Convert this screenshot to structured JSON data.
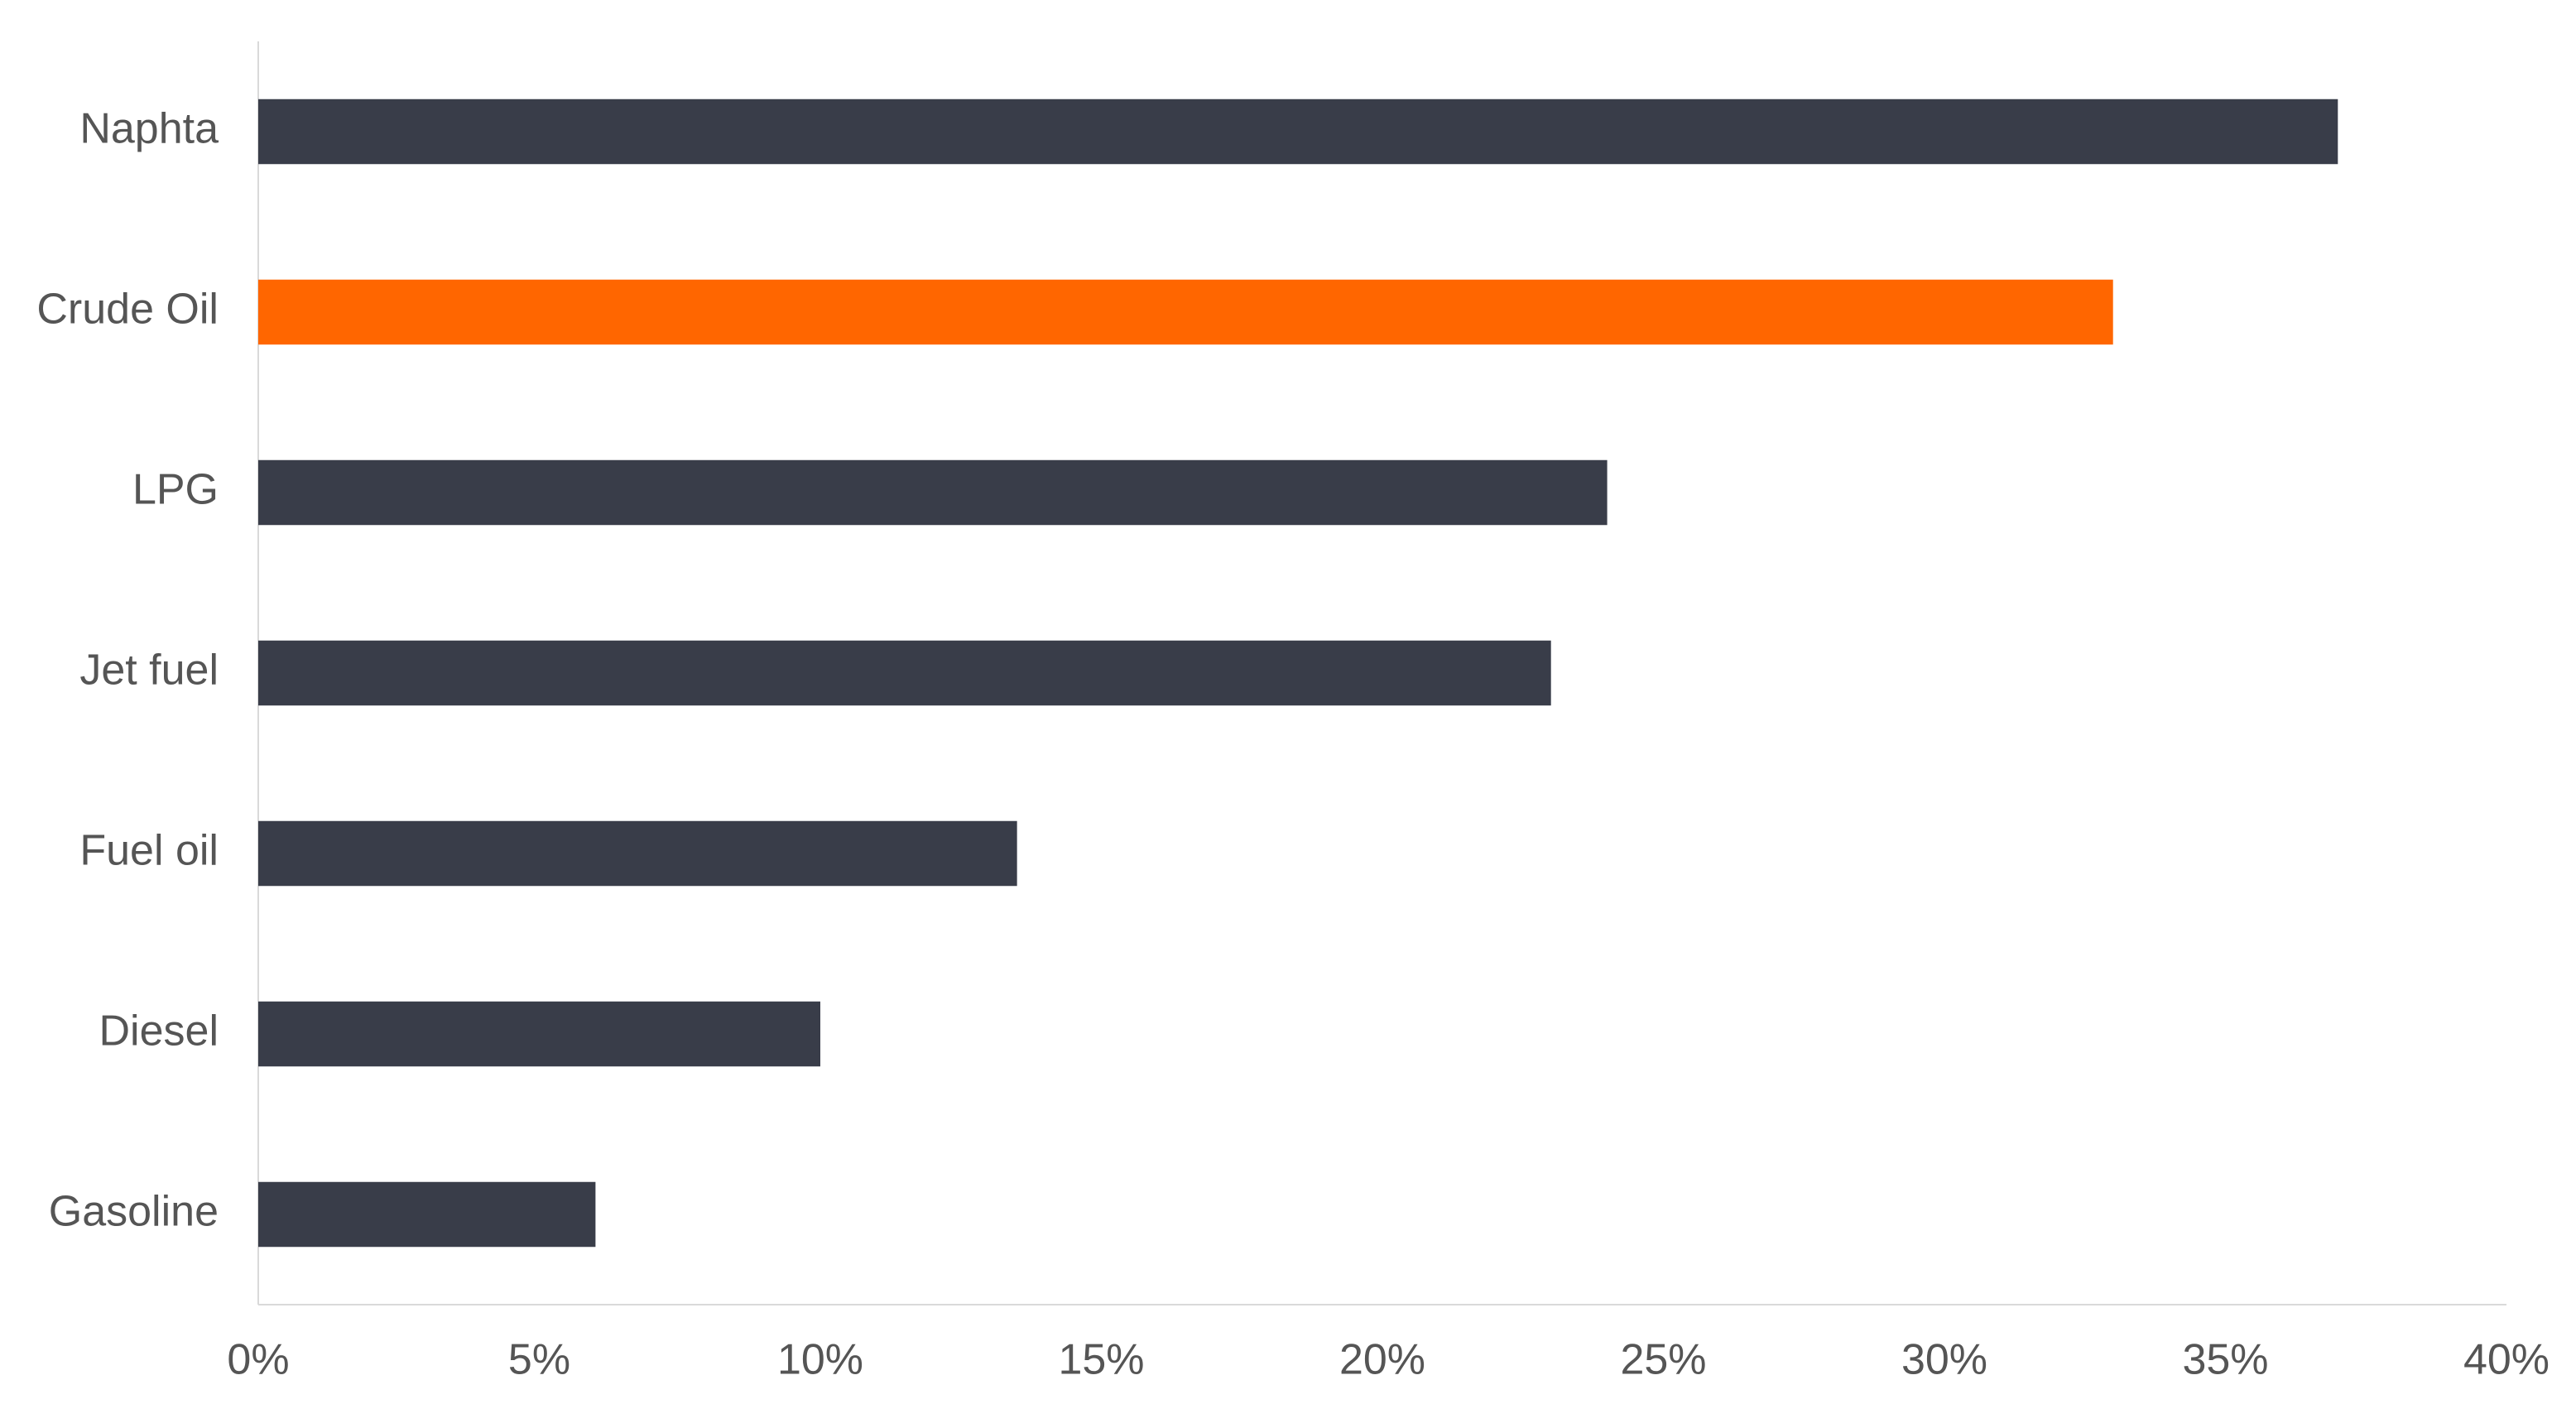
{
  "chart_data": {
    "type": "bar",
    "orientation": "horizontal",
    "categories": [
      "Naphta",
      "Crude Oil",
      "LPG",
      "Jet fuel",
      "Fuel oil",
      "Diesel",
      "Gasoline"
    ],
    "values": [
      37,
      33,
      24,
      23,
      13.5,
      10,
      6
    ],
    "colors": [
      "#393d49",
      "#ff6600",
      "#393d49",
      "#393d49",
      "#393d49",
      "#393d49",
      "#393d49"
    ],
    "xlim": [
      0,
      40
    ],
    "xticks": [
      {
        "value": 0,
        "label": "0%"
      },
      {
        "value": 5,
        "label": "5%"
      },
      {
        "value": 10,
        "label": "10%"
      },
      {
        "value": 15,
        "label": "15%"
      },
      {
        "value": 20,
        "label": "20%"
      },
      {
        "value": 25,
        "label": "25%"
      },
      {
        "value": 30,
        "label": "30%"
      },
      {
        "value": 35,
        "label": "35%"
      },
      {
        "value": 40,
        "label": "40%"
      }
    ],
    "grid": false
  }
}
